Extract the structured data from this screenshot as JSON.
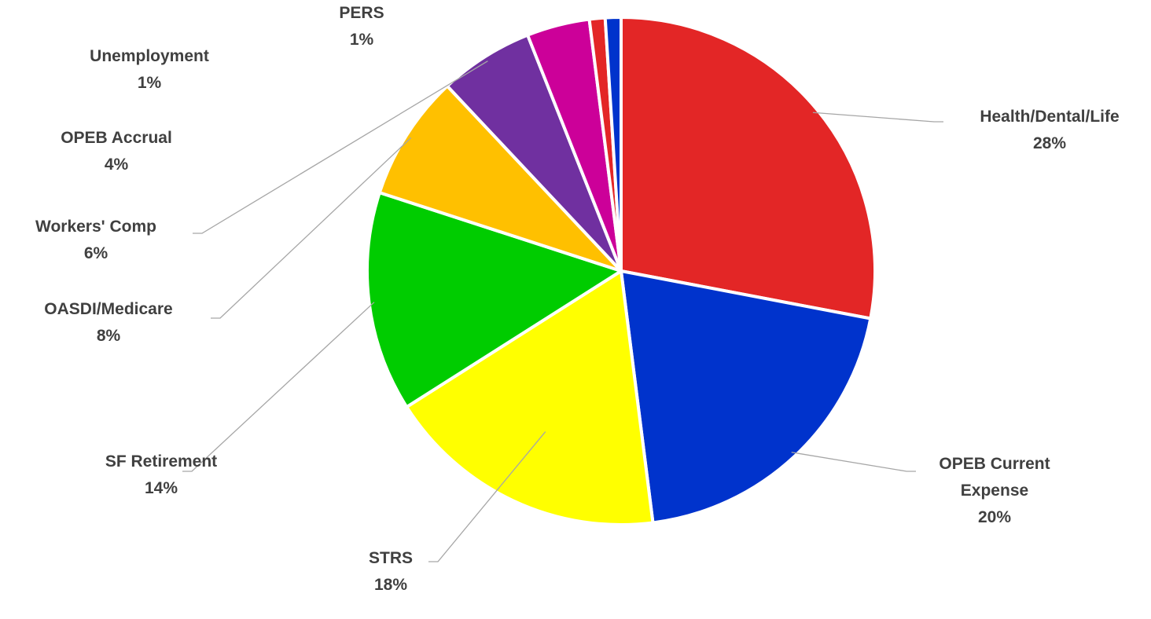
{
  "chart_data": {
    "type": "pie",
    "categories": [
      "Health/Dental/Life",
      "OPEB Current Expense",
      "STRS",
      "SF Retirement",
      "OASDI/Medicare",
      "Workers' Comp",
      "OPEB Accrual",
      "Unemployment",
      "PERS"
    ],
    "values": [
      28,
      20,
      18,
      14,
      8,
      6,
      4,
      1,
      1
    ],
    "value_labels": [
      "28%",
      "20%",
      "18%",
      "14%",
      "8%",
      "6%",
      "4%",
      "1%",
      "1%"
    ],
    "colors": [
      "#e32626",
      "#0033cc",
      "#ffff00",
      "#00cc00",
      "#ffc000",
      "#7030a0",
      "#cc0099",
      "#e32626",
      "#0033cc"
    ]
  }
}
